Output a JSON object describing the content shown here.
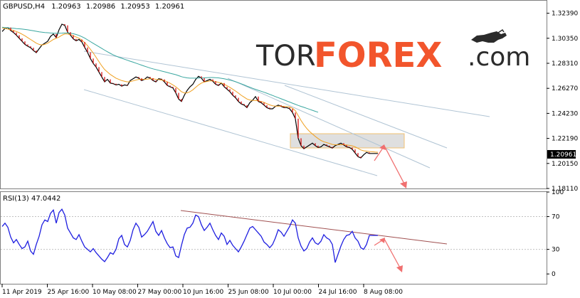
{
  "window": {
    "symbol": "GBPUSD,H4",
    "ohlc": [
      "1.20963",
      "1.20986",
      "1.20953",
      "1.20961"
    ]
  },
  "logo": {
    "part1": "TOR",
    "part2": "FOREX",
    "part3": ".com"
  },
  "current_price_label": "1.20961",
  "indicator_header": "RSI(13) 47.0442",
  "colors": {
    "price": "#000000",
    "bear": "#d40000",
    "ma_fast": "#f0a020",
    "ma_slow": "#3aa7a0",
    "trend": "#b0c4d4",
    "rsi": "#1f1fe0",
    "rsi_trend": "#a05050",
    "arrow": "#f07070",
    "zone": "#d9d9d9",
    "zone_border": "#f0c070"
  },
  "chart_data": [
    {
      "type": "line",
      "name": "price",
      "y_ticks": [
        "1.32390",
        "1.30350",
        "1.28310",
        "1.26270",
        "1.24230",
        "1.22190",
        "1.20150",
        "1.18110"
      ],
      "ylim": [
        1.1811,
        1.3341
      ],
      "x_ticks": [
        "11 Apr 2019",
        "25 Apr 16:00",
        "10 May 08:00",
        "27 May 00:00",
        "10 Jun 16:00",
        "25 Jun 08:00",
        "10 Jul 00:00",
        "24 Jul 16:00",
        "8 Aug 08:00"
      ],
      "x": [
        0,
        4,
        8,
        12,
        16,
        20,
        24,
        28,
        32,
        36,
        40,
        44,
        48,
        52,
        56,
        60,
        64,
        68,
        72,
        76,
        80,
        84,
        88,
        92,
        96,
        100,
        104,
        108,
        112,
        116,
        120,
        124,
        128,
        132,
        136,
        140,
        144,
        148,
        152,
        156,
        160,
        164,
        168,
        172,
        176,
        180,
        184,
        188,
        192,
        196,
        200,
        204,
        208,
        212,
        216,
        220,
        224,
        228,
        232,
        236,
        240,
        244,
        248,
        252,
        256,
        260,
        264,
        268,
        272,
        276,
        280,
        284,
        288,
        292,
        296,
        300,
        304,
        308,
        312,
        316,
        320,
        324,
        328,
        332,
        336,
        340,
        344,
        348,
        352,
        356,
        360,
        364,
        368,
        372,
        376,
        380,
        384,
        388,
        392,
        396,
        400,
        404,
        408,
        412,
        416,
        420,
        424,
        428,
        432,
        436,
        440,
        444,
        448,
        452,
        456,
        460,
        464,
        468,
        472,
        476,
        480,
        484,
        488,
        492,
        496,
        500,
        504,
        508,
        512,
        516,
        520,
        524,
        528
      ],
      "series": [
        {
          "values": [
            1.309,
            1.3115,
            1.3122,
            1.3098,
            1.3082,
            1.306,
            1.3035,
            1.301,
            1.2985,
            1.297,
            1.2958,
            1.2935,
            1.2918,
            1.295,
            1.298,
            1.2995,
            1.301,
            1.305,
            1.307,
            1.304,
            1.3105,
            1.315,
            1.314,
            1.3085,
            1.306,
            1.303,
            1.3015,
            1.3025,
            1.3005,
            1.296,
            1.292,
            1.287,
            1.283,
            1.28,
            1.276,
            1.272,
            1.268,
            1.27,
            1.267,
            1.2665,
            1.2655,
            1.266,
            1.2645,
            1.2655,
            1.265,
            1.269,
            1.2705,
            1.272,
            1.271,
            1.269,
            1.27,
            1.272,
            1.271,
            1.269,
            1.268,
            1.2705,
            1.27,
            1.268,
            1.265,
            1.264,
            1.263,
            1.259,
            1.254,
            1.252,
            1.257,
            1.261,
            1.264,
            1.266,
            1.27,
            1.2725,
            1.271,
            1.268,
            1.269,
            1.27,
            1.2685,
            1.266,
            1.265,
            1.267,
            1.264,
            1.262,
            1.26,
            1.257,
            1.255,
            1.252,
            1.25,
            1.249,
            1.247,
            1.251,
            1.253,
            1.256,
            1.252,
            1.251,
            1.249,
            1.247,
            1.246,
            1.246,
            1.248,
            1.249,
            1.248,
            1.247,
            1.247,
            1.246,
            1.243,
            1.238,
            1.222,
            1.216,
            1.2135,
            1.215,
            1.2165,
            1.218,
            1.216,
            1.2145,
            1.215,
            1.217,
            1.216,
            1.215,
            1.214,
            1.216,
            1.217,
            1.218,
            1.2165,
            1.215,
            1.2145,
            1.213,
            1.21,
            1.207,
            1.206,
            1.2085,
            1.2105,
            1.2096,
            1.2096,
            1.2096,
            1.2096
          ]
        },
        {
          "values": [
            1.312,
            1.3115,
            1.311,
            1.3105,
            1.3098,
            1.309,
            1.308,
            1.3068,
            1.3055,
            1.304,
            1.3025,
            1.301,
            1.2995,
            1.2985,
            1.298,
            1.2985,
            1.2995,
            1.301,
            1.3025,
            1.3035,
            1.3045,
            1.306,
            1.307,
            1.307,
            1.3065,
            1.3055,
            1.3045,
            1.3035,
            1.302,
            1.3,
            1.2975,
            1.2945,
            1.2915,
            1.288,
            1.2845,
            1.281,
            1.278,
            1.276,
            1.274,
            1.2725,
            1.271,
            1.27,
            1.269,
            1.2685,
            1.268,
            1.2682,
            1.2688,
            1.2695,
            1.27,
            1.27,
            1.27,
            1.2702,
            1.2705,
            1.2705,
            1.27,
            1.2698,
            1.2695,
            1.269,
            1.268,
            1.2668,
            1.2655,
            1.264,
            1.262,
            1.26,
            1.259,
            1.259,
            1.26,
            1.2615,
            1.2635,
            1.2655,
            1.267,
            1.2678,
            1.2683,
            1.2688,
            1.2688,
            1.2682,
            1.2675,
            1.267,
            1.266,
            1.2648,
            1.2635,
            1.262,
            1.2605,
            1.2588,
            1.257,
            1.2555,
            1.254,
            1.2532,
            1.2528,
            1.2528,
            1.2525,
            1.252,
            1.2512,
            1.2502,
            1.2492,
            1.2485,
            1.2482,
            1.2482,
            1.2482,
            1.248,
            1.2478,
            1.2475,
            1.2465,
            1.2445,
            1.2405,
            1.2365,
            1.233,
            1.23,
            1.2275,
            1.2255,
            1.2235,
            1.2218,
            1.2202,
            1.2192,
            1.2185,
            1.2178,
            1.217,
            1.2167,
            1.2167,
            1.2168,
            1.2168,
            1.2165,
            1.2162,
            1.2158,
            1.215,
            1.2138,
            1.2125,
            1.2118,
            1.2115,
            1.2112,
            1.211,
            1.2108,
            1.2106
          ]
        },
        {
          "values": [
            1.3125,
            1.3122,
            1.312,
            1.3118,
            1.3116,
            1.3114,
            1.3112,
            1.311,
            1.3107,
            1.3104,
            1.31,
            1.3096,
            1.3092,
            1.3088,
            1.3085,
            1.3082,
            1.308,
            1.3078,
            1.3077,
            1.3076,
            1.3076,
            1.3077,
            1.3078,
            1.3078,
            1.3076,
            1.3072,
            1.3066,
            1.3058,
            1.3048,
            1.3036,
            1.3022,
            1.3008,
            1.2994,
            1.298,
            1.2966,
            1.2952,
            1.2938,
            1.2925,
            1.2912,
            1.29,
            1.289,
            1.288,
            1.2872,
            1.2864,
            1.2856,
            1.2848,
            1.284,
            1.2832,
            1.2824,
            1.2816,
            1.2808,
            1.28,
            1.2792,
            1.2786,
            1.278,
            1.2774,
            1.2768,
            1.2762,
            1.2756,
            1.275,
            1.2744,
            1.2738,
            1.273,
            1.2722,
            1.2716,
            1.2712,
            1.271,
            1.271,
            1.271,
            1.2711,
            1.2712,
            1.2713,
            1.2714,
            1.2715,
            1.2715,
            1.2714,
            1.2712,
            1.2709,
            1.2705,
            1.27,
            1.2694,
            1.2688,
            1.2681,
            1.2673,
            1.2664,
            1.2655,
            1.2645,
            1.2636,
            1.2627,
            1.2619,
            1.2611,
            1.2603,
            1.2595,
            1.2587,
            1.2578,
            1.2569,
            1.256,
            1.2551,
            1.2542,
            1.2533,
            1.2524,
            1.2515,
            1.2506,
            1.2497,
            1.2488,
            1.248,
            1.2472,
            1.2464,
            1.2456,
            1.2448,
            1.244,
            1.2432,
            null,
            null,
            null,
            null,
            null,
            null,
            null,
            null,
            null,
            null,
            null,
            null,
            null,
            null,
            null,
            null,
            null,
            null,
            null,
            null,
            null
          ]
        }
      ]
    },
    {
      "type": "line",
      "name": "RSI",
      "y_ticks": [
        "100",
        "70",
        "30",
        "0"
      ],
      "ylim": [
        -12,
        100
      ],
      "levels": [
        70,
        30
      ],
      "x": [
        0,
        4,
        8,
        12,
        16,
        20,
        24,
        28,
        32,
        36,
        40,
        44,
        48,
        52,
        56,
        60,
        64,
        68,
        72,
        76,
        80,
        84,
        88,
        92,
        96,
        100,
        104,
        108,
        112,
        116,
        120,
        124,
        128,
        132,
        136,
        140,
        144,
        148,
        152,
        156,
        160,
        164,
        168,
        172,
        176,
        180,
        184,
        188,
        192,
        196,
        200,
        204,
        208,
        212,
        216,
        220,
        224,
        228,
        232,
        236,
        240,
        244,
        248,
        252,
        256,
        260,
        264,
        268,
        272,
        276,
        280,
        284,
        288,
        292,
        296,
        300,
        304,
        308,
        312,
        316,
        320,
        324,
        328,
        332,
        336,
        340,
        344,
        348,
        352,
        356,
        360,
        364,
        368,
        372,
        376,
        380,
        384,
        388,
        392,
        396,
        400,
        404,
        408,
        412,
        416,
        420,
        424,
        428,
        432,
        436,
        440,
        444,
        448,
        452,
        456,
        460,
        464,
        468,
        472,
        476,
        480,
        484,
        488,
        492,
        496,
        500,
        504,
        508,
        512,
        516,
        520,
        524,
        528
      ],
      "series": [
        {
          "values": [
            58,
            62,
            57,
            45,
            38,
            42,
            36,
            31,
            33,
            40,
            28,
            24,
            36,
            46,
            60,
            66,
            64,
            74,
            78,
            62,
            75,
            79,
            72,
            56,
            50,
            44,
            42,
            48,
            40,
            33,
            30,
            27,
            31,
            26,
            22,
            18,
            15,
            20,
            26,
            24,
            30,
            43,
            47,
            36,
            33,
            41,
            54,
            62,
            57,
            45,
            48,
            52,
            58,
            64,
            52,
            47,
            53,
            44,
            37,
            32,
            33,
            22,
            20,
            35,
            48,
            56,
            57,
            62,
            72,
            70,
            60,
            53,
            57,
            62,
            54,
            47,
            42,
            50,
            46,
            36,
            41,
            35,
            31,
            27,
            33,
            40,
            48,
            56,
            58,
            54,
            50,
            46,
            39,
            36,
            32,
            36,
            44,
            54,
            51,
            46,
            52,
            58,
            66,
            62,
            44,
            34,
            28,
            31,
            39,
            44,
            38,
            36,
            40,
            48,
            44,
            42,
            36,
            14,
            24,
            34,
            42,
            47,
            48,
            52,
            44,
            40,
            32,
            30,
            36,
            47,
            47,
            47,
            47
          ]
        }
      ]
    }
  ]
}
